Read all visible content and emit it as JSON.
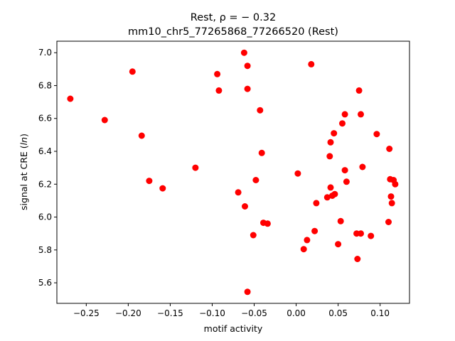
{
  "chart_data": {
    "type": "scatter",
    "title_line1": "Rest, ρ = − 0.32",
    "title_line2": "mm10_chr5_77265868_77266520 (Rest)",
    "xlabel": "motif activity",
    "ylabel_prefix": "signal at CRE (",
    "ylabel_italic": "ln",
    "ylabel_suffix": ")",
    "xlim": [
      -0.285,
      0.135
    ],
    "ylim": [
      5.475,
      7.07
    ],
    "xticks": [
      -0.25,
      -0.2,
      -0.15,
      -0.1,
      -0.05,
      0.0,
      0.05,
      0.1
    ],
    "xtick_labels": [
      "−0.25",
      "−0.20",
      "−0.15",
      "−0.10",
      "−0.05",
      "0.00",
      "0.05",
      "0.10"
    ],
    "yticks": [
      5.6,
      5.8,
      6.0,
      6.2,
      6.4,
      6.6,
      6.8,
      7.0
    ],
    "ytick_labels": [
      "5.6",
      "5.8",
      "6.0",
      "6.2",
      "6.4",
      "6.6",
      "6.8",
      "7.0"
    ],
    "grid": false,
    "marker_color": "#ff0000",
    "points": [
      {
        "x": -0.269,
        "y": 6.72
      },
      {
        "x": -0.228,
        "y": 6.59
      },
      {
        "x": -0.195,
        "y": 6.885
      },
      {
        "x": -0.184,
        "y": 6.495
      },
      {
        "x": -0.175,
        "y": 6.22
      },
      {
        "x": -0.159,
        "y": 6.175
      },
      {
        "x": -0.12,
        "y": 6.3
      },
      {
        "x": -0.094,
        "y": 6.87
      },
      {
        "x": -0.092,
        "y": 6.77
      },
      {
        "x": -0.069,
        "y": 6.15
      },
      {
        "x": -0.062,
        "y": 7.0
      },
      {
        "x": -0.061,
        "y": 6.065
      },
      {
        "x": -0.058,
        "y": 6.92
      },
      {
        "x": -0.058,
        "y": 6.78
      },
      {
        "x": -0.058,
        "y": 5.545
      },
      {
        "x": -0.051,
        "y": 5.89
      },
      {
        "x": -0.048,
        "y": 6.225
      },
      {
        "x": -0.043,
        "y": 6.65
      },
      {
        "x": -0.041,
        "y": 6.39
      },
      {
        "x": -0.039,
        "y": 5.965
      },
      {
        "x": -0.034,
        "y": 5.96
      },
      {
        "x": 0.002,
        "y": 6.265
      },
      {
        "x": 0.009,
        "y": 5.805
      },
      {
        "x": 0.013,
        "y": 5.86
      },
      {
        "x": 0.018,
        "y": 6.93
      },
      {
        "x": 0.022,
        "y": 5.915
      },
      {
        "x": 0.024,
        "y": 6.085
      },
      {
        "x": 0.037,
        "y": 6.12
      },
      {
        "x": 0.04,
        "y": 6.37
      },
      {
        "x": 0.041,
        "y": 6.455
      },
      {
        "x": 0.041,
        "y": 6.18
      },
      {
        "x": 0.043,
        "y": 6.13
      },
      {
        "x": 0.045,
        "y": 6.51
      },
      {
        "x": 0.046,
        "y": 6.14
      },
      {
        "x": 0.05,
        "y": 5.835
      },
      {
        "x": 0.053,
        "y": 5.975
      },
      {
        "x": 0.055,
        "y": 6.57
      },
      {
        "x": 0.058,
        "y": 6.625
      },
      {
        "x": 0.058,
        "y": 6.285
      },
      {
        "x": 0.06,
        "y": 6.215
      },
      {
        "x": 0.072,
        "y": 5.9
      },
      {
        "x": 0.073,
        "y": 5.745
      },
      {
        "x": 0.075,
        "y": 6.77
      },
      {
        "x": 0.077,
        "y": 6.625
      },
      {
        "x": 0.077,
        "y": 5.9
      },
      {
        "x": 0.079,
        "y": 6.305
      },
      {
        "x": 0.089,
        "y": 5.885
      },
      {
        "x": 0.096,
        "y": 6.505
      },
      {
        "x": 0.11,
        "y": 5.97
      },
      {
        "x": 0.111,
        "y": 6.415
      },
      {
        "x": 0.112,
        "y": 6.23
      },
      {
        "x": 0.113,
        "y": 6.125
      },
      {
        "x": 0.114,
        "y": 6.085
      },
      {
        "x": 0.116,
        "y": 6.225
      },
      {
        "x": 0.118,
        "y": 6.2
      }
    ]
  }
}
